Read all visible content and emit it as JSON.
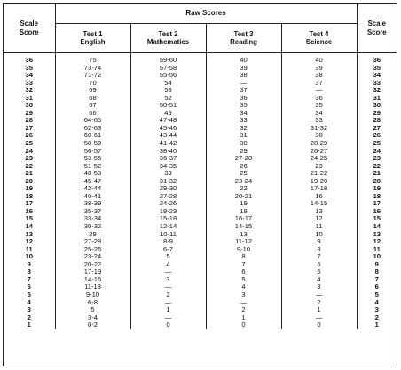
{
  "header": {
    "raw_scores_title": "Raw Scores",
    "scale_score_left": [
      "Scale",
      "Score"
    ],
    "scale_score_right": [
      "Scale",
      "Score"
    ],
    "tests": [
      {
        "line1": "Test 1",
        "line2": "English"
      },
      {
        "line1": "Test 2",
        "line2": "Mathematics"
      },
      {
        "line1": "Test 3",
        "line2": "Reading"
      },
      {
        "line1": "Test 4",
        "line2": "Science"
      }
    ]
  },
  "rows": [
    {
      "scale": "36",
      "english": "75",
      "math": "59-60",
      "reading": "40",
      "science": "40"
    },
    {
      "scale": "35",
      "english": "73-74",
      "math": "57-58",
      "reading": "39",
      "science": "39"
    },
    {
      "scale": "34",
      "english": "71-72",
      "math": "55-56",
      "reading": "38",
      "science": "38"
    },
    {
      "scale": "33",
      "english": "70",
      "math": "54",
      "reading": "—",
      "science": "37"
    },
    {
      "scale": "32",
      "english": "69",
      "math": "53",
      "reading": "37",
      "science": "—"
    },
    {
      "scale": "31",
      "english": "68",
      "math": "52",
      "reading": "36",
      "science": "36"
    },
    {
      "scale": "30",
      "english": "67",
      "math": "50-51",
      "reading": "35",
      "science": "35"
    },
    {
      "scale": "29",
      "english": "66",
      "math": "49",
      "reading": "34",
      "science": "34"
    },
    {
      "scale": "28",
      "english": "64-65",
      "math": "47-48",
      "reading": "33",
      "science": "33"
    },
    {
      "scale": "27",
      "english": "62-63",
      "math": "45-46",
      "reading": "32",
      "science": "31-32"
    },
    {
      "scale": "26",
      "english": "60-61",
      "math": "43-44",
      "reading": "31",
      "science": "30"
    },
    {
      "scale": "25",
      "english": "58-59",
      "math": "41-42",
      "reading": "30",
      "science": "28-29"
    },
    {
      "scale": "24",
      "english": "56-57",
      "math": "38-40",
      "reading": "29",
      "science": "26-27"
    },
    {
      "scale": "23",
      "english": "53-55",
      "math": "36-37",
      "reading": "27-28",
      "science": "24-25"
    },
    {
      "scale": "22",
      "english": "51-52",
      "math": "34-35",
      "reading": "26",
      "science": "23"
    },
    {
      "scale": "21",
      "english": "48-50",
      "math": "33",
      "reading": "25",
      "science": "21-22"
    },
    {
      "scale": "20",
      "english": "45-47",
      "math": "31-32",
      "reading": "23-24",
      "science": "19-20"
    },
    {
      "scale": "19",
      "english": "42-44",
      "math": "29-30",
      "reading": "22",
      "science": "17-18"
    },
    {
      "scale": "18",
      "english": "40-41",
      "math": "27-28",
      "reading": "20-21",
      "science": "16"
    },
    {
      "scale": "17",
      "english": "38-39",
      "math": "24-26",
      "reading": "19",
      "science": "14-15"
    },
    {
      "scale": "16",
      "english": "35-37",
      "math": "19-23",
      "reading": "18",
      "science": "13"
    },
    {
      "scale": "15",
      "english": "33-34",
      "math": "15-18",
      "reading": "16-17",
      "science": "12"
    },
    {
      "scale": "14",
      "english": "30-32",
      "math": "12-14",
      "reading": "14-15",
      "science": "11"
    },
    {
      "scale": "13",
      "english": "29",
      "math": "10-11",
      "reading": "13",
      "science": "10"
    },
    {
      "scale": "12",
      "english": "27-28",
      "math": "8-9",
      "reading": "11-12",
      "science": "9"
    },
    {
      "scale": "11",
      "english": "25-26",
      "math": "6-7",
      "reading": "9-10",
      "science": "8"
    },
    {
      "scale": "10",
      "english": "23-24",
      "math": "5",
      "reading": "8",
      "science": "7"
    },
    {
      "scale": "9",
      "english": "20-22",
      "math": "4",
      "reading": "7",
      "science": "6"
    },
    {
      "scale": "8",
      "english": "17-19",
      "math": "—",
      "reading": "6",
      "science": "5"
    },
    {
      "scale": "7",
      "english": "14-16",
      "math": "3",
      "reading": "5",
      "science": "4"
    },
    {
      "scale": "6",
      "english": "11-13",
      "math": "—",
      "reading": "4",
      "science": "3"
    },
    {
      "scale": "5",
      "english": "9-10",
      "math": "2",
      "reading": "3",
      "science": "—"
    },
    {
      "scale": "4",
      "english": "6-8",
      "math": "—",
      "reading": "—",
      "science": "2"
    },
    {
      "scale": "3",
      "english": "5",
      "math": "1",
      "reading": "2",
      "science": "1"
    },
    {
      "scale": "2",
      "english": "3-4",
      "math": "—",
      "reading": "1",
      "science": "—"
    },
    {
      "scale": "1",
      "english": "0-2",
      "math": "0",
      "reading": "0",
      "science": "0"
    }
  ]
}
